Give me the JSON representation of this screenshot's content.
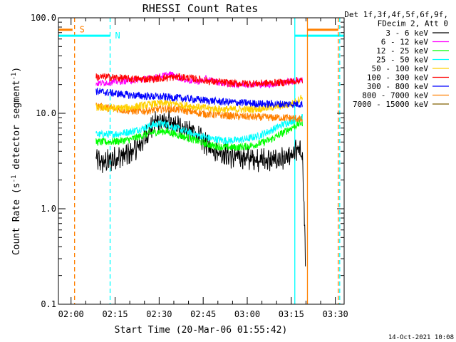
{
  "chart_data": {
    "type": "line",
    "title": "RHESSI Count Rates",
    "xlabel": "Start Time (20-Mar-06 01:55:42)",
    "ylabel_parts": [
      "Count Rate (s",
      "-1",
      " detector segment",
      "-1",
      ")"
    ],
    "yscale": "log",
    "ylim": [
      0.1,
      100.0
    ],
    "xlim_minutes": [
      115.7,
      213.0
    ],
    "yticks": [
      {
        "v": 0.1,
        "label": "0.1"
      },
      {
        "v": 1.0,
        "label": "1.0"
      },
      {
        "v": 10.0,
        "label": "10.0"
      },
      {
        "v": 100.0,
        "label": "100.0"
      }
    ],
    "xticks": [
      {
        "m": 120,
        "label": "02:00"
      },
      {
        "m": 135,
        "label": "02:15"
      },
      {
        "m": 150,
        "label": "02:30"
      },
      {
        "m": 165,
        "label": "02:45"
      },
      {
        "m": 180,
        "label": "03:00"
      },
      {
        "m": 195,
        "label": "03:15"
      },
      {
        "m": 210,
        "label": "03:30"
      }
    ],
    "legend_header": [
      "Det 1f,3f,4f,5f,6f,9f,",
      "FDecim 2, Att 0"
    ],
    "series": [
      {
        "name": "3 - 6 keV",
        "color": "#000000",
        "points": [
          [
            128.5,
            3.3
          ],
          [
            131,
            3.0
          ],
          [
            134,
            3.3
          ],
          [
            137,
            3.5
          ],
          [
            140,
            3.8
          ],
          [
            143,
            4.5
          ],
          [
            146,
            6.0
          ],
          [
            149,
            8.5
          ],
          [
            152,
            8.0
          ],
          [
            155,
            7.5
          ],
          [
            158,
            7.0
          ],
          [
            161,
            6.5
          ],
          [
            164,
            5.5
          ],
          [
            167,
            4.5
          ],
          [
            170,
            4.0
          ],
          [
            173,
            3.7
          ],
          [
            176,
            3.5
          ],
          [
            180,
            3.4
          ],
          [
            184,
            3.3
          ],
          [
            188,
            3.2
          ],
          [
            192,
            3.3
          ],
          [
            195,
            3.4
          ],
          [
            196.5,
            4.0
          ],
          [
            198,
            4.2
          ],
          [
            198.8,
            3.5
          ],
          [
            199.3,
            1.2
          ],
          [
            199.8,
            0.3
          ]
        ]
      },
      {
        "name": "6 - 12 keV",
        "color": "#ff00ff",
        "points": [
          [
            128.5,
            20.5
          ],
          [
            132,
            21
          ],
          [
            136,
            21.5
          ],
          [
            140,
            22
          ],
          [
            144,
            22.5
          ],
          [
            148,
            23.5
          ],
          [
            152,
            25
          ],
          [
            154,
            25.5
          ],
          [
            156,
            24
          ],
          [
            160,
            22
          ],
          [
            164,
            21.5
          ],
          [
            166,
            23
          ],
          [
            168,
            22
          ],
          [
            172,
            20.5
          ],
          [
            176,
            20
          ],
          [
            180,
            20
          ],
          [
            184,
            20
          ],
          [
            188,
            20
          ],
          [
            192,
            21
          ],
          [
            195,
            21.5
          ],
          [
            197,
            22
          ],
          [
            198.8,
            22.5
          ]
        ]
      },
      {
        "name": "12 - 25 keV",
        "color": "#00ff00",
        "points": [
          [
            128.5,
            5.0
          ],
          [
            132,
            5.0
          ],
          [
            136,
            5.1
          ],
          [
            140,
            5.3
          ],
          [
            144,
            5.8
          ],
          [
            148,
            6.3
          ],
          [
            152,
            6.5
          ],
          [
            156,
            6.0
          ],
          [
            160,
            5.5
          ],
          [
            164,
            5.0
          ],
          [
            168,
            4.6
          ],
          [
            172,
            4.4
          ],
          [
            176,
            4.4
          ],
          [
            180,
            4.5
          ],
          [
            184,
            4.8
          ],
          [
            188,
            5.3
          ],
          [
            192,
            6.2
          ],
          [
            195,
            7.0
          ],
          [
            197,
            7.6
          ],
          [
            198.8,
            8.0
          ]
        ]
      },
      {
        "name": "25 - 50 keV",
        "color": "#00ffff",
        "points": [
          [
            128.5,
            6.0
          ],
          [
            132,
            6.0
          ],
          [
            136,
            6.1
          ],
          [
            140,
            6.4
          ],
          [
            144,
            6.9
          ],
          [
            148,
            7.6
          ],
          [
            152,
            7.8
          ],
          [
            156,
            7.0
          ],
          [
            160,
            6.3
          ],
          [
            164,
            5.8
          ],
          [
            168,
            5.4
          ],
          [
            172,
            5.2
          ],
          [
            176,
            5.2
          ],
          [
            180,
            5.4
          ],
          [
            184,
            5.8
          ],
          [
            188,
            6.6
          ],
          [
            192,
            7.6
          ],
          [
            195,
            8.3
          ],
          [
            197,
            8.8
          ],
          [
            198.8,
            9.2
          ]
        ]
      },
      {
        "name": "50 - 100 keV",
        "color": "#ffd000",
        "points": [
          [
            128.5,
            11.5
          ],
          [
            132,
            11.3
          ],
          [
            136,
            11.3
          ],
          [
            140,
            11.5
          ],
          [
            144,
            12.0
          ],
          [
            148,
            12.5
          ],
          [
            152,
            12.8
          ],
          [
            156,
            12.5
          ],
          [
            160,
            12.0
          ],
          [
            164,
            11.5
          ],
          [
            168,
            11.2
          ],
          [
            172,
            11.0
          ],
          [
            176,
            11.0
          ],
          [
            180,
            11.0
          ],
          [
            184,
            11.2
          ],
          [
            188,
            11.5
          ],
          [
            192,
            12.0
          ],
          [
            195,
            12.5
          ],
          [
            197,
            13.5
          ],
          [
            198.8,
            15.0
          ]
        ]
      },
      {
        "name": "100 - 300 keV",
        "color": "#ff0000",
        "points": [
          [
            128.5,
            24.0
          ],
          [
            132,
            24.0
          ],
          [
            136,
            23.5
          ],
          [
            140,
            23.0
          ],
          [
            144,
            22.8
          ],
          [
            148,
            23.0
          ],
          [
            152,
            23.5
          ],
          [
            156,
            24.0
          ],
          [
            160,
            23.5
          ],
          [
            164,
            22.5
          ],
          [
            168,
            21.5
          ],
          [
            172,
            21.0
          ],
          [
            176,
            20.5
          ],
          [
            180,
            20.5
          ],
          [
            184,
            20.5
          ],
          [
            188,
            20.8
          ],
          [
            192,
            21.0
          ],
          [
            195,
            21.5
          ],
          [
            197,
            22.0
          ],
          [
            198.8,
            22.0
          ]
        ]
      },
      {
        "name": "300 - 800 keV",
        "color": "#0000ff",
        "points": [
          [
            128.5,
            17.0
          ],
          [
            132,
            16.5
          ],
          [
            136,
            16.0
          ],
          [
            140,
            15.5
          ],
          [
            144,
            15.2
          ],
          [
            148,
            15.0
          ],
          [
            152,
            14.8
          ],
          [
            156,
            14.5
          ],
          [
            160,
            14.2
          ],
          [
            164,
            13.8
          ],
          [
            168,
            13.5
          ],
          [
            172,
            13.2
          ],
          [
            176,
            13.0
          ],
          [
            180,
            12.8
          ],
          [
            184,
            12.6
          ],
          [
            188,
            12.5
          ],
          [
            192,
            12.5
          ],
          [
            195,
            12.5
          ],
          [
            197,
            12.5
          ],
          [
            198.8,
            12.5
          ]
        ]
      },
      {
        "name": "800 - 7000 keV",
        "color": "#ff8000",
        "points": [
          [
            128.5,
            12.0
          ],
          [
            132,
            11.5
          ],
          [
            136,
            11.0
          ],
          [
            140,
            10.6
          ],
          [
            144,
            10.5
          ],
          [
            148,
            10.8
          ],
          [
            152,
            11.2
          ],
          [
            156,
            11.0
          ],
          [
            160,
            10.5
          ],
          [
            164,
            10.0
          ],
          [
            168,
            9.7
          ],
          [
            172,
            9.5
          ],
          [
            176,
            9.3
          ],
          [
            180,
            9.2
          ],
          [
            184,
            9.1
          ],
          [
            188,
            9.0
          ],
          [
            192,
            9.0
          ],
          [
            195,
            8.9
          ],
          [
            197,
            8.8
          ],
          [
            198.8,
            8.5
          ]
        ]
      },
      {
        "name": "7000 - 15000 keV",
        "color": "#806000",
        "points": []
      }
    ],
    "markers": [
      {
        "label": "S",
        "color": "#ff8000",
        "dash": true,
        "m": 121.2,
        "bar": [
          115.7,
          120.5
        ],
        "bar_y": 75
      },
      {
        "label": "N",
        "color": "#00ffff",
        "dash": true,
        "m": 133.3,
        "bar": [
          115.7,
          133.3
        ],
        "bar_y": 65
      },
      {
        "label": "",
        "color": "#00ffff",
        "dash": false,
        "m": 196.2,
        "bar": [
          196.2,
          213.0
        ],
        "bar_y": 65
      },
      {
        "label": "",
        "color": "#ff8000",
        "dash": false,
        "m": 200.5,
        "bar": [
          200.5,
          211.0
        ],
        "bar_y": 75
      },
      {
        "label": "",
        "color": "#00ffff",
        "dash": true,
        "m": 211.5,
        "bar": null,
        "bar_y": null
      },
      {
        "label": "",
        "color": "#ff8000",
        "dash": true,
        "m": 211.0,
        "bar": null,
        "bar_y": null
      }
    ],
    "grid": false,
    "legend_position": "top-right outside"
  },
  "footer": {
    "date": "14-Oct-2021 10:08"
  }
}
